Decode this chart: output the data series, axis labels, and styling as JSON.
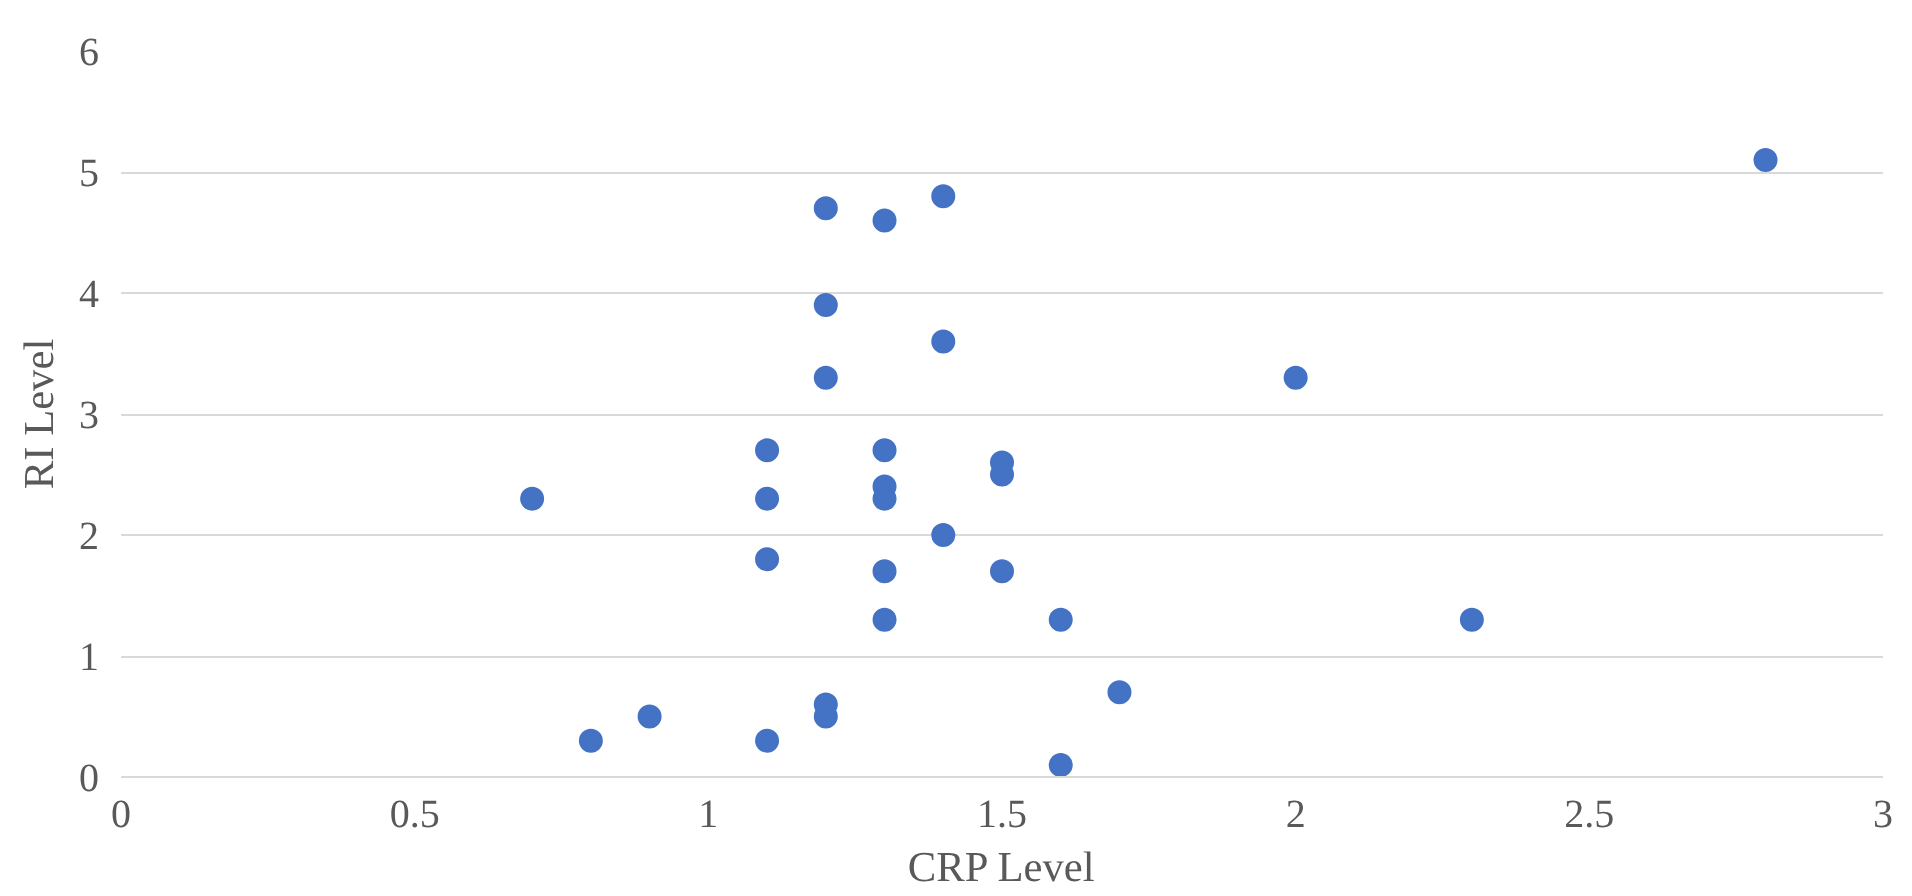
{
  "chart_data": {
    "type": "scatter",
    "xlabel": "CRP Level",
    "ylabel": "RI Level",
    "x": [
      2.8,
      1.2,
      1.3,
      1.4,
      1.2,
      1.4,
      1.2,
      2.0,
      1.1,
      1.3,
      1.5,
      1.5,
      1.3,
      1.3,
      0.7,
      1.1,
      1.4,
      1.1,
      1.3,
      1.5,
      1.3,
      1.6,
      2.3,
      1.7,
      1.2,
      1.2,
      0.9,
      0.8,
      1.1,
      1.6
    ],
    "values": [
      5.1,
      4.7,
      4.6,
      4.8,
      3.9,
      3.6,
      3.3,
      3.3,
      2.7,
      2.7,
      2.6,
      2.5,
      2.4,
      2.3,
      2.3,
      2.3,
      2.0,
      1.8,
      1.7,
      1.7,
      1.3,
      1.3,
      1.3,
      0.7,
      0.6,
      0.5,
      0.5,
      0.3,
      0.3,
      0.1
    ],
    "color": "#4472c4",
    "marker": "circle",
    "xlim": [
      0,
      3
    ],
    "xticks": [
      0,
      0.5,
      1,
      1.5,
      2,
      2.5,
      3
    ],
    "ylim": [
      0,
      6
    ],
    "yticks": [
      0,
      1,
      2,
      3,
      4,
      5,
      6
    ],
    "grid": "y"
  }
}
